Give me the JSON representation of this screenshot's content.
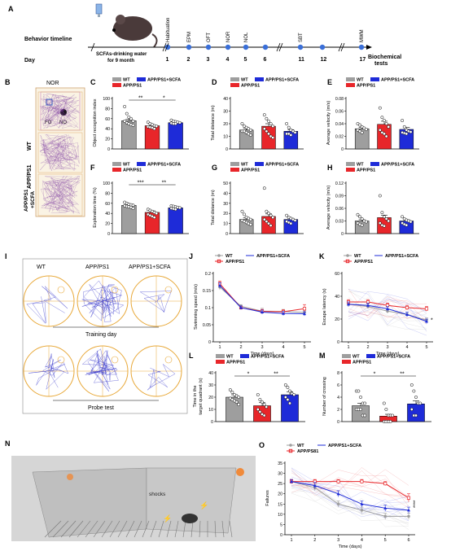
{
  "panel_letters": {
    "A": "A",
    "B": "B",
    "C": "C",
    "D": "D",
    "E": "E",
    "F": "F",
    "G": "G",
    "H": "H",
    "I": "I",
    "J": "J",
    "K": "K",
    "L": "L",
    "M": "M",
    "N": "N",
    "O": "O"
  },
  "timeline": {
    "title": "Behavior timeline",
    "day_label": "Day",
    "drink_line1": "SCFAs-drinking water",
    "drink_line2": "for 9 month",
    "biochem_line1": "Biochemical",
    "biochem_line2": "tests",
    "tests": [
      "Habituation",
      "EPM",
      "OFT",
      "NOR",
      "NOL",
      "",
      "SBT",
      "",
      "MWM"
    ],
    "days": [
      "1",
      "2",
      "3",
      "4",
      "5",
      "6",
      "11",
      "12",
      "17"
    ]
  },
  "nor_panel": {
    "title": "NOR",
    "fo": "FO",
    "no": "NO",
    "rows": [
      "WT",
      "APP/PS1",
      "APP/PS1\n+SCFA"
    ]
  },
  "mwm_panel": {
    "cols": [
      "WT",
      "APP/PS1",
      "APP/PS1+SCFA"
    ],
    "training": "Training day",
    "probe": "Probe test"
  },
  "shock_panel": {
    "label": "shocks"
  },
  "legend": {
    "wt": "WT",
    "app": "APP/PS1",
    "scfa": "APP/PS1+SCFA",
    "app_o": "APP/PS81"
  },
  "colors": {
    "wt": "#9e9e9e",
    "app": "#e8262a",
    "scfa": "#1e2bd8"
  },
  "chart_data": [
    {
      "id": "C",
      "type": "bar",
      "categories": [
        "WT",
        "APP/PS1",
        "APP/PS1+SCFA"
      ],
      "values": [
        56,
        46,
        52
      ],
      "errors": [
        3,
        2,
        2
      ],
      "ylabel": "Object recognition index",
      "ylim": [
        0,
        100
      ],
      "yticks": [
        0,
        20,
        40,
        60,
        80,
        100
      ],
      "sig": [
        "**",
        "*"
      ],
      "points": [
        [
          84,
          70,
          63,
          60,
          55,
          55,
          52,
          50,
          48,
          47
        ],
        [
          53,
          50,
          48,
          46,
          45,
          44,
          43,
          42,
          40
        ],
        [
          57,
          55,
          54,
          53,
          52,
          51,
          50,
          50
        ]
      ]
    },
    {
      "id": "D",
      "type": "bar",
      "categories": [
        "WT",
        "APP/PS1",
        "APP/PS1+SCFA"
      ],
      "values": [
        15,
        18,
        14
      ],
      "errors": [
        1.2,
        2,
        1.2
      ],
      "ylabel": "Total distance (m)",
      "ylim": [
        0,
        40
      ],
      "yticks": [
        0,
        10,
        20,
        30,
        40
      ],
      "points": [
        [
          20,
          18,
          17,
          16,
          15,
          14,
          14,
          13,
          12,
          11
        ],
        [
          27,
          24,
          22,
          20,
          18,
          16,
          14,
          12,
          10,
          9
        ],
        [
          20,
          17,
          15,
          14,
          13,
          12,
          12,
          11
        ]
      ]
    },
    {
      "id": "E",
      "type": "bar",
      "categories": [
        "WT",
        "APP/PS1",
        "APP/PS1+SCFA"
      ],
      "values": [
        0.032,
        0.039,
        0.031
      ],
      "errors": [
        0.002,
        0.005,
        0.003
      ],
      "ylabel": "Average velocity (m/s)",
      "ylim": [
        0,
        0.08
      ],
      "yticks": [
        0,
        0.02,
        0.04,
        0.06,
        0.08
      ],
      "points": [
        [
          0.04,
          0.038,
          0.035,
          0.033,
          0.031,
          0.03,
          0.028,
          0.026
        ],
        [
          0.065,
          0.05,
          0.045,
          0.04,
          0.035,
          0.03,
          0.026,
          0.024,
          0.02
        ],
        [
          0.045,
          0.035,
          0.03,
          0.028,
          0.027,
          0.026,
          0.025,
          0.024
        ]
      ]
    },
    {
      "id": "F",
      "type": "bar",
      "categories": [
        "WT",
        "APP/PS1",
        "APP/PS1+SCFA"
      ],
      "values": [
        56,
        42,
        51
      ],
      "errors": [
        2,
        3,
        2
      ],
      "ylabel": "Exploration time (%)",
      "ylim": [
        0,
        100
      ],
      "yticks": [
        0,
        20,
        40,
        60,
        80,
        100
      ],
      "sig": [
        "***",
        "**"
      ],
      "points": [
        [
          62,
          60,
          58,
          57,
          56,
          55,
          54,
          53,
          52,
          50
        ],
        [
          48,
          46,
          44,
          42,
          40,
          38,
          36,
          34,
          32
        ],
        [
          55,
          54,
          53,
          52,
          51,
          50,
          49,
          48
        ]
      ]
    },
    {
      "id": "G",
      "type": "bar",
      "categories": [
        "WT",
        "APP/PS1",
        "APP/PS1+SCFA"
      ],
      "values": [
        14,
        17,
        14
      ],
      "errors": [
        1.5,
        2.5,
        1.2
      ],
      "ylabel": "Total distance (m)",
      "ylim": [
        0,
        50
      ],
      "yticks": [
        0,
        10,
        20,
        30,
        40,
        50
      ],
      "points": [
        [
          22,
          19,
          16,
          15,
          14,
          13,
          12,
          11,
          10,
          9
        ],
        [
          45,
          22,
          20,
          18,
          16,
          14,
          12,
          10,
          8
        ],
        [
          18,
          16,
          15,
          14,
          13,
          12,
          11,
          10
        ]
      ]
    },
    {
      "id": "H",
      "type": "bar",
      "categories": [
        "WT",
        "APP/PS1",
        "APP/PS1+SCFA"
      ],
      "values": [
        0.03,
        0.038,
        0.03
      ],
      "errors": [
        0.003,
        0.006,
        0.003
      ],
      "ylabel": "Average velocity (m/s)",
      "ylim": [
        0,
        0.12
      ],
      "yticks": [
        0,
        0.03,
        0.06,
        0.09,
        0.12
      ],
      "points": [
        [
          0.045,
          0.04,
          0.035,
          0.03,
          0.028,
          0.025,
          0.022,
          0.02
        ],
        [
          0.09,
          0.05,
          0.04,
          0.035,
          0.03,
          0.025,
          0.02,
          0.018
        ],
        [
          0.04,
          0.035,
          0.032,
          0.03,
          0.028,
          0.025,
          0.022,
          0.02
        ]
      ]
    },
    {
      "id": "J",
      "type": "line",
      "x": [
        1,
        2,
        3,
        4,
        5
      ],
      "xlabel": "Time (days)",
      "ylabel": "Swimming speed (m/s)",
      "ylim": [
        0,
        0.2
      ],
      "yticks": [
        0,
        0.05,
        0.1,
        0.15,
        0.2
      ],
      "series": [
        {
          "name": "WT",
          "values": [
            0.16,
            0.104,
            0.09,
            0.089,
            0.086
          ],
          "errors": [
            0.008,
            0.005,
            0.008,
            0.006,
            0.006
          ]
        },
        {
          "name": "APP/PS1",
          "values": [
            0.17,
            0.1,
            0.089,
            0.088,
            0.097
          ],
          "errors": [
            0.008,
            0.005,
            0.006,
            0.006,
            0.012
          ]
        },
        {
          "name": "APP/PS1+SCFA",
          "values": [
            0.165,
            0.1,
            0.087,
            0.083,
            0.082
          ],
          "errors": [
            0.008,
            0.005,
            0.006,
            0.006,
            0.006
          ]
        }
      ]
    },
    {
      "id": "K",
      "type": "line",
      "x": [
        1,
        2,
        3,
        4,
        5
      ],
      "xlabel": "Time (days)",
      "ylabel": "Escape latency (s)",
      "ylim": [
        0,
        60
      ],
      "yticks": [
        0,
        20,
        40,
        60
      ],
      "sig_text": "*",
      "series": [
        {
          "name": "WT",
          "values": [
            33,
            31,
            27,
            24,
            19
          ],
          "errors": [
            2,
            2,
            2,
            2,
            2
          ]
        },
        {
          "name": "APP/PS1",
          "values": [
            35,
            35,
            32,
            30,
            29
          ],
          "errors": [
            2,
            2,
            2,
            2,
            2
          ]
        },
        {
          "name": "APP/PS1+SCFA",
          "values": [
            33,
            32,
            29,
            24,
            18
          ],
          "errors": [
            2,
            2,
            2,
            2,
            2
          ]
        }
      ]
    },
    {
      "id": "L",
      "type": "bar",
      "categories": [
        "WT",
        "APP/PS1",
        "APP/PS1+SCFA"
      ],
      "values": [
        20,
        13,
        22
      ],
      "errors": [
        2,
        2.5,
        2.5
      ],
      "ylabel": "Time in the\ntarget quadrant (s)",
      "ylim": [
        0,
        40
      ],
      "yticks": [
        0,
        10,
        20,
        30,
        40
      ],
      "sig": [
        "*",
        "**"
      ],
      "points": [
        [
          26,
          24,
          22,
          21,
          20,
          19,
          18,
          17,
          16,
          14
        ],
        [
          22,
          18,
          16,
          14,
          12,
          10,
          8,
          6,
          5
        ],
        [
          30,
          28,
          25,
          23,
          22,
          20,
          18,
          15
        ]
      ]
    },
    {
      "id": "M",
      "type": "bar",
      "categories": [
        "WT",
        "APP/PS1",
        "APP/PS1+SCFA"
      ],
      "values": [
        2.6,
        0.9,
        2.9
      ],
      "errors": [
        0.4,
        0.3,
        0.5
      ],
      "ylabel": "Number of crossing",
      "ylim": [
        0,
        8
      ],
      "yticks": [
        0,
        2,
        4,
        6,
        8
      ],
      "sig": [
        "*",
        "**"
      ],
      "points": [
        [
          5,
          5,
          4,
          3,
          3,
          2,
          2,
          2,
          1,
          1
        ],
        [
          3,
          2,
          1,
          1,
          1,
          0,
          0,
          0,
          0
        ],
        [
          6,
          5,
          4,
          3,
          3,
          2,
          1,
          1
        ]
      ]
    },
    {
      "id": "O",
      "type": "line",
      "x": [
        1,
        2,
        3,
        4,
        5,
        6
      ],
      "xlabel": "Time (days)",
      "ylabel": "Failures",
      "ylim": [
        0,
        35
      ],
      "yticks": [
        0,
        5,
        10,
        15,
        20,
        25,
        30,
        35
      ],
      "sig_text": "****",
      "series": [
        {
          "name": "WT",
          "values": [
            26,
            23,
            15,
            12,
            9,
            9
          ],
          "errors": [
            1,
            1.5,
            1.5,
            1.5,
            1.5,
            1.5
          ]
        },
        {
          "name": "APP/PS81",
          "values": [
            26,
            26,
            26,
            26,
            25,
            18
          ],
          "errors": [
            1,
            1,
            1,
            1,
            1,
            2
          ]
        },
        {
          "name": "APP/PS1+SCFA",
          "values": [
            26,
            24,
            20,
            15,
            13,
            12
          ],
          "errors": [
            1,
            1.5,
            1.5,
            1.5,
            1.5,
            1.5
          ]
        }
      ]
    }
  ]
}
